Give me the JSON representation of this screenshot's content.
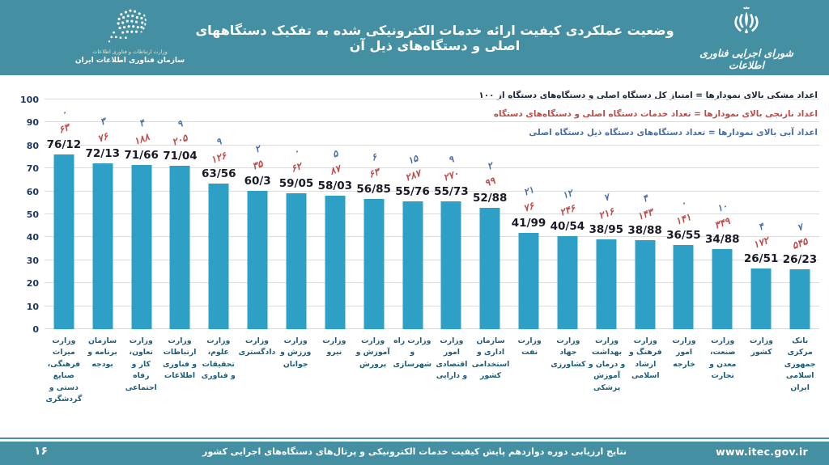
{
  "header": {
    "title": "وضعیت عملکردی کیفیت ارائه خدمات الکترونیکی شده به تفکیک دستگاههای اصلی و دستگاه‌های ذیل آن",
    "left_logo": {
      "line1": "وزارت ارتباطات و فناوری اطلاعات",
      "line2": "سازمان فناوری اطلاعات ایران"
    },
    "right_logo": {
      "caption": "شورای اجرایی فناوری اطلاعات"
    }
  },
  "legend": {
    "line_black": "اعداد مشکی بالای نمودارها = امتیاز کل دستگاه اصلی و دستگاه‌های دستگاه از ۱۰۰",
    "line_orange": "اعداد نارنجی بالای نمودارها = تعداد خدمات دستگاه اصلی و دستگاه‌های دستگاه",
    "line_blue": "اعداد آبی بالای نمودارها = تعداد دستگاه‌های دستگاه ذیل دستگاه اصلی"
  },
  "footer": {
    "page_number": "۱۶",
    "text": "نتایج ارزیابی دوره دوازدهم پایش کیفیت خدمات الکترونیکی و پرتال‌های دستگاه‌های اجرایی کشور",
    "url": "www.itec.gov.ir"
  },
  "colors": {
    "teal_band": "#458FA2",
    "bar_fill": "#2EA0C5",
    "score_color": "#1A1A26",
    "services_color": "#BE4B48",
    "subagencies_color": "#4A6DA8",
    "axis_label_color": "#1F3864",
    "category_label_color": "#1E5B76",
    "gridline_color": "#DCDCDC",
    "legend_black_color": "#1B2433",
    "logo_text_accent": "#EFE0B9",
    "background": "#FFFFFF"
  },
  "chart_data": {
    "type": "bar",
    "title": "وضعیت عملکردی کیفیت ارائه خدمات الکترونیکی شده به تفکیک دستگاههای اصلی و دستگاه‌های ذیل آن",
    "xlabel": "",
    "ylabel": "",
    "ylim": [
      0,
      100
    ],
    "yticks": [
      0,
      10,
      20,
      30,
      40,
      50,
      60,
      70,
      80,
      90,
      100
    ],
    "grid": true,
    "legend_position": "top-right",
    "categories": [
      "وزارت میراث فرهنگی، صنایع دستی و گردشگری",
      "سازمان برنامه و بودجه",
      "وزارت تعاون، کار و رفاه اجتماعی",
      "وزارت ارتباطات و فناوری اطلاعات",
      "وزارت علوم، تحقیقات و فناوری",
      "وزارت دادگستری",
      "وزارت ورزش و جوانان",
      "وزارت نیرو",
      "وزارت آموزش و پرورش",
      "وزارت راه و شهرسازی",
      "وزارت امور اقتصادی و دارایی",
      "سازمان اداری و استخدامی کشور",
      "وزارت نفت",
      "وزارت جهاد کشاورزی",
      "وزارت بهداشت و درمان و آموزش پزشکی",
      "وزارت فرهنگ و ارشاد اسلامی",
      "وزارت امور خارجه",
      "وزارت صنعت، معدن و تجارت",
      "وزارت کشور",
      "بانک مرکزی جمهوری اسلامی ایران"
    ],
    "series": [
      {
        "name": "امتیاز کل از ۱۰۰",
        "values": [
          76.12,
          72.13,
          71.66,
          71.04,
          63.56,
          60.3,
          59.05,
          58.03,
          56.85,
          55.76,
          55.73,
          52.88,
          41.99,
          40.54,
          38.95,
          38.88,
          36.55,
          34.88,
          26.51,
          26.23
        ],
        "labels": [
          "76/12",
          "72/13",
          "71/66",
          "71/04",
          "63/56",
          "60/3",
          "59/05",
          "58/03",
          "56/85",
          "55/76",
          "55/73",
          "52/88",
          "41/99",
          "40/54",
          "38/95",
          "38/88",
          "36/55",
          "34/88",
          "26/51",
          "26/23"
        ]
      },
      {
        "name": "تعداد خدمات",
        "values": [
          63,
          76,
          188,
          205,
          126,
          35,
          62,
          87,
          63,
          287,
          270,
          99,
          76,
          246,
          216,
          143,
          141,
          349,
          172,
          545
        ],
        "labels": [
          "۶۳",
          "۷۶",
          "۱۸۸",
          "۲۰۵",
          "۱۲۶",
          "۳۵",
          "۶۲",
          "۸۷",
          "۶۳",
          "۲۸۷",
          "۲۷۰",
          "۹۹",
          "۷۶",
          "۲۴۶",
          "۲۱۶",
          "۱۴۳",
          "۱۴۱",
          "۳۴۹",
          "۱۷۲",
          "۵۴۵"
        ],
        "labels_latin": [
          63,
          76,
          188,
          205,
          126,
          35,
          62,
          87,
          63,
          287,
          270,
          99,
          76,
          246,
          216,
          143,
          141,
          349,
          172,
          545
        ]
      },
      {
        "name": "تعداد دستگاه‌های ذیل",
        "values": [
          0,
          3,
          4,
          9,
          9,
          2,
          0,
          5,
          6,
          15,
          9,
          2,
          21,
          12,
          7,
          4,
          0,
          10,
          4,
          7
        ],
        "labels": [
          "۰",
          "۳",
          "۴",
          "۹",
          "۹",
          "۲",
          "۰",
          "۵",
          "۶",
          "۱۵",
          "۹",
          "۲",
          "۲۱",
          "۱۲",
          "۷",
          "۴",
          "۰",
          "۱۰",
          "۴",
          "۷"
        ],
        "labels_latin": [
          0,
          3,
          4,
          9,
          9,
          2,
          0,
          5,
          6,
          15,
          9,
          2,
          21,
          12,
          7,
          4,
          0,
          10,
          4,
          7
        ]
      }
    ]
  }
}
